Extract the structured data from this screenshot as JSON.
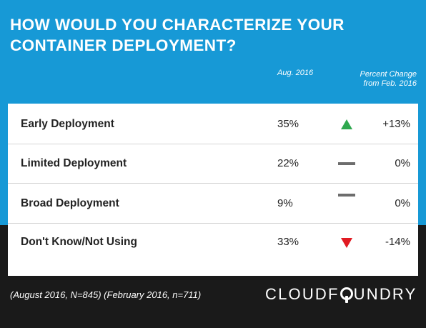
{
  "header": {
    "title": "HOW WOULD YOU CHARACTERIZE YOUR CONTAINER DEPLOYMENT?",
    "col_value": "Aug. 2016",
    "col_change": "Percent Change from Feb. 2016"
  },
  "colors": {
    "header_bg": "#1799d6",
    "footer_bg": "#1a1a1a",
    "up": "#2fa84f",
    "down": "#e11b22",
    "flat": "#6d6d6d"
  },
  "chart_data": {
    "type": "table",
    "title": "HOW WOULD YOU CHARACTERIZE YOUR CONTAINER DEPLOYMENT?",
    "columns": [
      "",
      "Aug. 2016",
      "Percent Change from Feb. 2016"
    ],
    "rows": [
      {
        "label": "Early Deployment",
        "value": "35%",
        "change": "+13%",
        "direction": "up"
      },
      {
        "label": "Limited Deployment",
        "value": "22%",
        "change": "0%",
        "direction": "flat"
      },
      {
        "label": "Broad Deployment",
        "value": "9%",
        "change": "0%",
        "direction": "flat"
      },
      {
        "label": "Don't Know/Not Using",
        "value": "33%",
        "change": "-14%",
        "direction": "down"
      }
    ]
  },
  "footer": {
    "note": "(August 2016, N=845) (February 2016, n=711)",
    "logo_left": "CLOUDF",
    "logo_right": "UNDRY"
  }
}
